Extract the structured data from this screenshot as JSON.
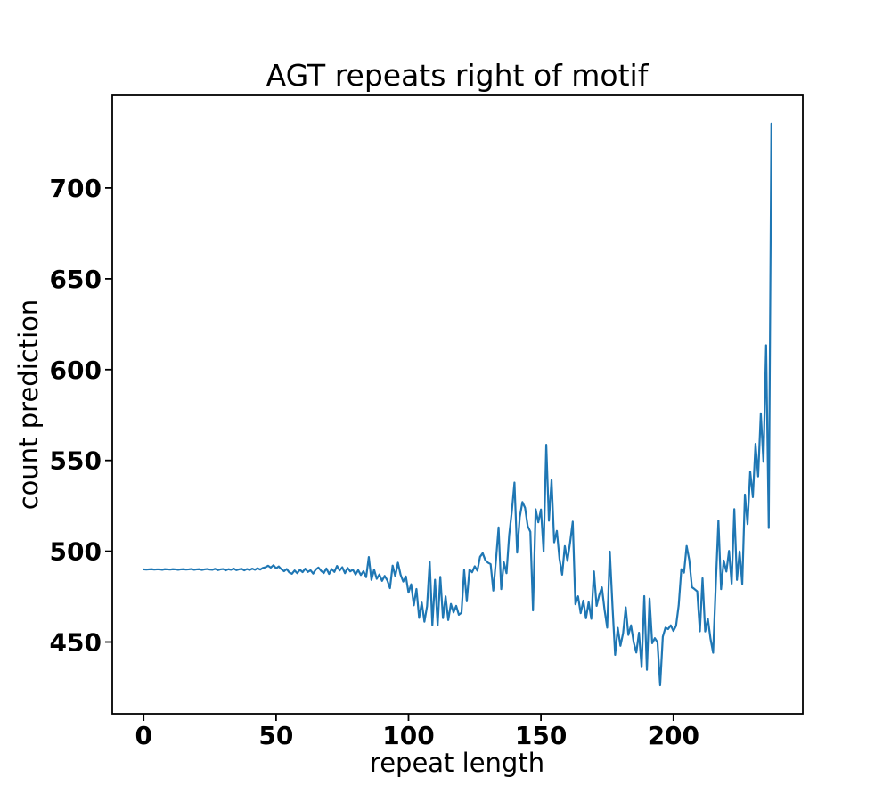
{
  "figure": {
    "background": "#ffffff",
    "spine_color": "#000000"
  },
  "chart_data": {
    "type": "line",
    "title": "AGT repeats right of motif",
    "xlabel": "repeat length",
    "ylabel": "count prediction",
    "line_color": "#1f77b4",
    "grid": false,
    "legend_position": "none",
    "xlim": [
      -11.85,
      248.85
    ],
    "ylim": [
      410.5,
      751.0
    ],
    "xticks": [
      0,
      50,
      100,
      150,
      200
    ],
    "yticks": [
      450,
      500,
      550,
      600,
      650,
      700
    ],
    "x_start": 0,
    "x_step": 1,
    "values": [
      490.0,
      489.9,
      490.0,
      490.1,
      489.9,
      490.0,
      490.0,
      489.8,
      490.1,
      490.0,
      489.9,
      490.1,
      490.0,
      489.8,
      490.0,
      490.1,
      489.9,
      490.0,
      490.2,
      489.8,
      490.0,
      490.1,
      489.7,
      490.0,
      490.2,
      489.9,
      489.8,
      490.3,
      489.6,
      490.0,
      490.2,
      489.5,
      490.1,
      489.8,
      490.4,
      489.6,
      490.0,
      490.3,
      489.5,
      490.2,
      489.7,
      490.4,
      489.8,
      490.6,
      489.9,
      490.8,
      491.2,
      492.0,
      491.0,
      492.3,
      490.6,
      491.6,
      490.1,
      489.0,
      490.2,
      488.3,
      487.6,
      489.4,
      487.9,
      489.8,
      488.5,
      490.4,
      488.6,
      489.5,
      487.7,
      489.9,
      491.0,
      489.2,
      488.0,
      490.5,
      487.5,
      490.2,
      488.6,
      491.9,
      489.4,
      491.2,
      487.9,
      490.8,
      488.9,
      489.8,
      487.2,
      489.6,
      486.9,
      489.0,
      485.7,
      496.8,
      484.2,
      489.9,
      484.8,
      487.2,
      483.7,
      486.4,
      483.9,
      479.7,
      492.1,
      486.2,
      493.7,
      487.1,
      483.3,
      486.1,
      477.2,
      481.8,
      470.2,
      479.2,
      463.3,
      471.7,
      461.2,
      469.7,
      494.2,
      459.3,
      484.3,
      459.1,
      485.9,
      463.2,
      475.1,
      462.1,
      471.0,
      466.3,
      469.9,
      465.0,
      466.1,
      489.7,
      472.4,
      489.9,
      488.4,
      491.7,
      489.3,
      496.9,
      498.9,
      495.1,
      493.7,
      492.9,
      478.3,
      494.8,
      513.1,
      479.1,
      493.9,
      487.9,
      508.8,
      521.9,
      537.8,
      499.2,
      518.8,
      527.1,
      523.9,
      513.8,
      510.7,
      467.4,
      523.1,
      515.9,
      523.0,
      499.8,
      558.6,
      516.8,
      539.2,
      504.9,
      511.2,
      495.8,
      487.1,
      502.8,
      494.7,
      504.8,
      516.3,
      470.8,
      475.2,
      465.9,
      472.8,
      463.1,
      471.9,
      462.8,
      488.9,
      469.9,
      475.8,
      480.1,
      467.8,
      457.9,
      499.8,
      469.9,
      442.9,
      457.8,
      447.9,
      454.8,
      469.1,
      453.9,
      459.2,
      449.9,
      444.2,
      455.1,
      436.1,
      475.3,
      434.7,
      473.9,
      449.3,
      452.1,
      449.8,
      426.2,
      452.9,
      457.9,
      457.1,
      459.2,
      456.1,
      458.9,
      470.2,
      490.1,
      488.2,
      502.9,
      495.1,
      480.2,
      479.1,
      477.9,
      455.9,
      485.1,
      455.8,
      462.9,
      451.9,
      444.1,
      481.2,
      516.9,
      479.1,
      494.9,
      488.8,
      500.2,
      482.1,
      523.2,
      484.2,
      499.9,
      481.9,
      531.2,
      514.9,
      543.9,
      529.8,
      559.1,
      541.2,
      575.9,
      549.2,
      613.4,
      512.8,
      735.4
    ]
  }
}
